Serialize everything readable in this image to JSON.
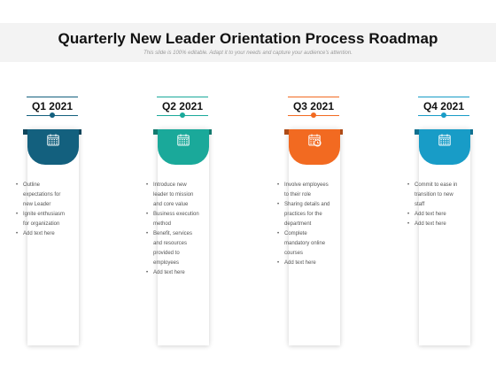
{
  "header": {
    "title": "Quarterly New Leader Orientation Process Roadmap",
    "subtitle": "This slide is 100% editable. Adapt it to your needs and capture your audience's attention."
  },
  "quarters": [
    {
      "label": "Q1 2021",
      "color": "#13607e",
      "icon": "calendar-icon",
      "bullets": [
        "Outline expectations for new Leader",
        "Ignite enthusiasm for organization",
        "Add text here"
      ]
    },
    {
      "label": "Q2 2021",
      "color": "#1aa99a",
      "icon": "calendar-icon",
      "bullets": [
        "Introduce new leader to mission and core value",
        "Business execution method",
        "Benefit, services and resources provided to employees",
        "Add text here"
      ]
    },
    {
      "label": "Q3 2021",
      "color": "#f26a21",
      "icon": "calendar-clock-icon",
      "bullets": [
        "Involve employees to their role",
        "Sharing details and practices for the department",
        "Complete mandatory online courses",
        "Add text here"
      ]
    },
    {
      "label": "Q4 2021",
      "color": "#189cc7",
      "icon": "calendar-icon",
      "bullets": [
        "Commit to ease in transition to new staff",
        "Add text here",
        "Add text here"
      ]
    }
  ]
}
